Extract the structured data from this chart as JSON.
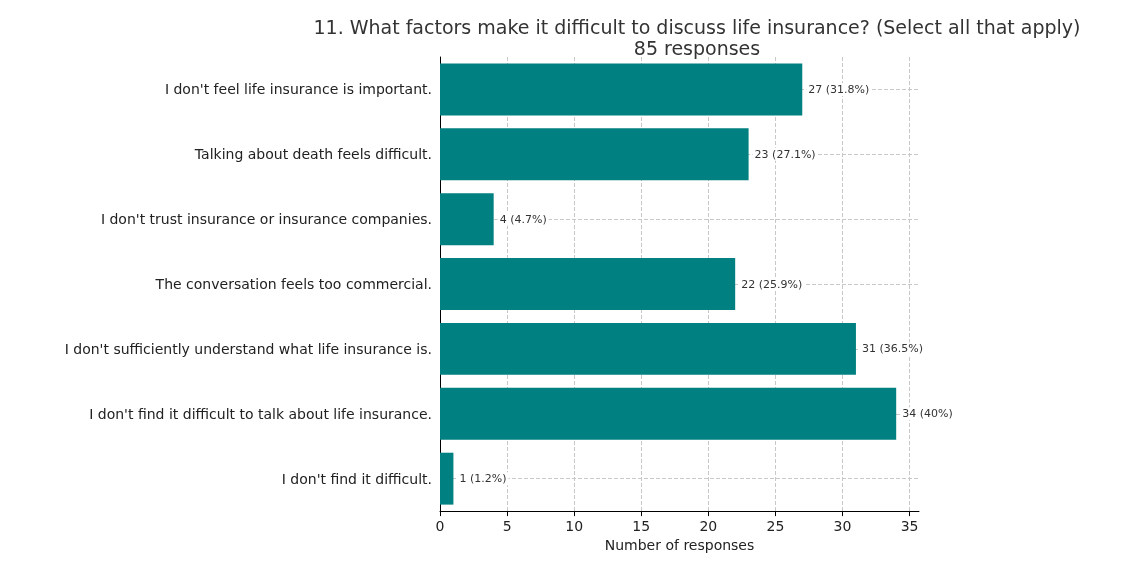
{
  "chart_data": {
    "type": "bar",
    "orientation": "horizontal",
    "title": "11. What factors make it difficult to discuss life insurance? (Select all that apply)",
    "subtitle": "85 responses",
    "xlabel": "Number of responses",
    "categories": [
      "I don't feel life insurance is important.",
      "Talking about death feels difficult.",
      "I don't trust insurance or insurance companies.",
      "The conversation feels too commercial.",
      "I don't sufficiently understand what life insurance is.",
      "I don't find it difficult to talk about life insurance.",
      "I don't find it difficult."
    ],
    "values": [
      27,
      23,
      4,
      22,
      31,
      34,
      1
    ],
    "value_labels": [
      "27 (31.8%)",
      "23 (27.1%)",
      "4 (4.7%)",
      "22 (25.9%)",
      "31 (36.5%)",
      "34 (40%)",
      "1 (1.2%)"
    ],
    "color": "#008080",
    "xlim": [
      0,
      35.7
    ],
    "xticks": [
      0,
      5,
      10,
      15,
      20,
      25,
      30,
      35
    ],
    "grid": true,
    "line_style": "dashed"
  }
}
